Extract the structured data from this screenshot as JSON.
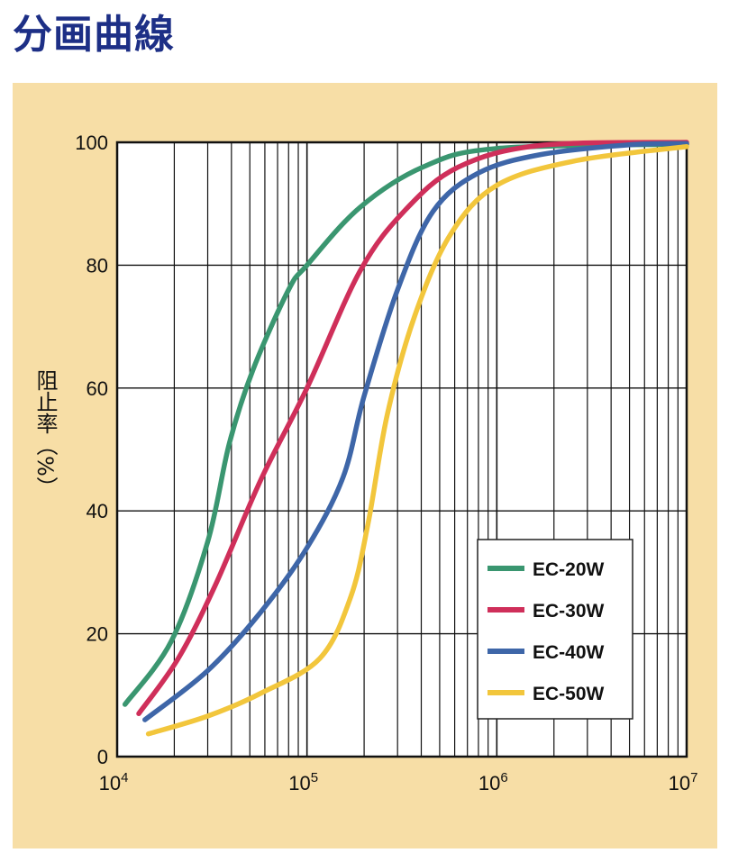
{
  "title": "分画曲線",
  "chart_data": {
    "type": "line",
    "title": "分画曲線",
    "xlabel": "",
    "ylabel": "阻止率（%）",
    "xscale": "log",
    "xlim": [
      10000,
      10000000
    ],
    "ylim": [
      0,
      100
    ],
    "grid": true,
    "xticks": [
      {
        "base": "10",
        "exp": "4"
      },
      {
        "base": "10",
        "exp": "5"
      },
      {
        "base": "10",
        "exp": "6"
      },
      {
        "base": "10",
        "exp": "7"
      }
    ],
    "yticks": [
      "0",
      "20",
      "40",
      "60",
      "80",
      "100"
    ],
    "legend_position": "bottom-right",
    "series": [
      {
        "name": "EC-20W",
        "color": "#3a9670",
        "x": [
          11000,
          19300,
          30000,
          39000,
          52000,
          80000,
          100000,
          190000,
          410000,
          1000000,
          10000000
        ],
        "y": [
          8.5,
          18.8,
          35,
          51,
          63,
          76,
          80,
          89.4,
          96,
          99,
          99.7
        ]
      },
      {
        "name": "EC-30W",
        "color": "#cf2f5a",
        "x": [
          13000,
          21000,
          33000,
          57000,
          100000,
          190000,
          330000,
          630000,
          1700000,
          10000000
        ],
        "y": [
          7,
          16,
          28,
          45,
          60,
          79,
          89,
          96,
          99.5,
          100
        ]
      },
      {
        "name": "EC-40W",
        "color": "#3e66a8",
        "x": [
          14000,
          30000,
          57000,
          100000,
          155000,
          200000,
          300000,
          460000,
          800000,
          1700000,
          5000000,
          10000000
        ],
        "y": [
          6,
          14,
          23.5,
          34,
          45.5,
          58.7,
          76,
          88.7,
          95,
          98,
          99.6,
          99.8
        ]
      },
      {
        "name": "EC-50W",
        "color": "#f2c63c",
        "x": [
          14600,
          30000,
          57000,
          117000,
          170000,
          210000,
          265000,
          370000,
          570000,
          1000000,
          2600000,
          10000000
        ],
        "y": [
          3.7,
          6.6,
          10.3,
          16,
          26,
          38,
          55.7,
          71.8,
          85,
          93,
          97,
          99.3
        ]
      }
    ]
  }
}
